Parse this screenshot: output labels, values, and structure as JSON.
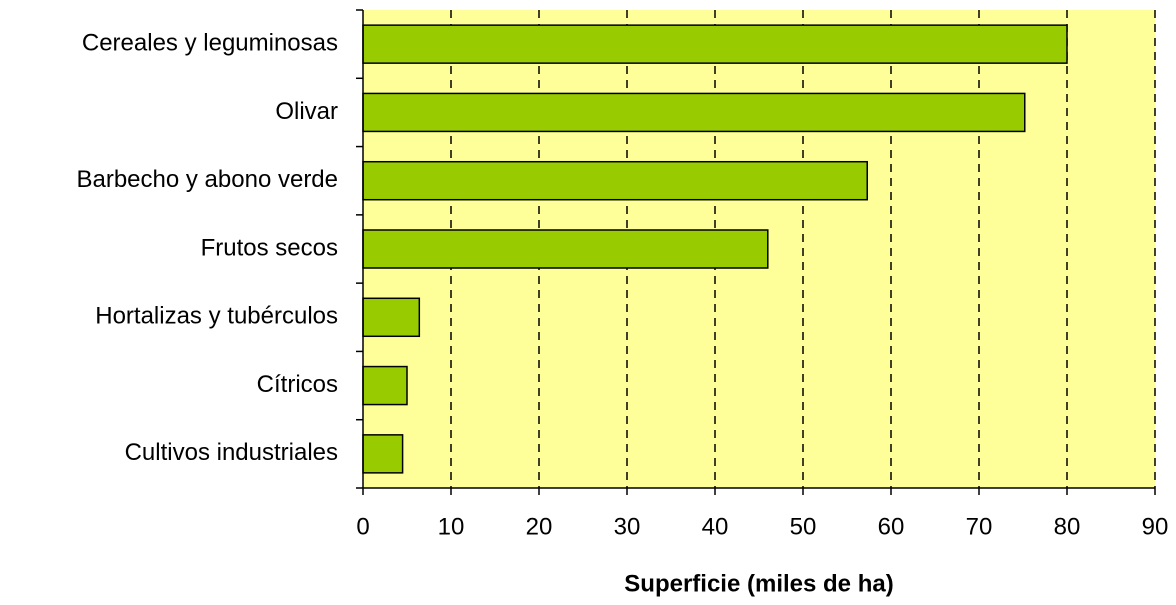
{
  "chart_data": {
    "type": "bar",
    "orientation": "horizontal",
    "categories": [
      "Cereales y leguminosas",
      "Olivar",
      "Barbecho y abono verde",
      "Frutos secos",
      "Hortalizas y tubérculos",
      "Cítricos",
      "Cultivos industriales"
    ],
    "values": [
      80,
      75.2,
      57.3,
      46,
      6.4,
      5,
      4.5
    ],
    "color": "#99cc00",
    "xlabel": "Superficie (miles de ha)",
    "xlim": [
      0,
      90
    ],
    "xticks": [
      0,
      10,
      20,
      30,
      40,
      50,
      60,
      70,
      80,
      90
    ],
    "grid": true,
    "background": "#ffff99"
  }
}
